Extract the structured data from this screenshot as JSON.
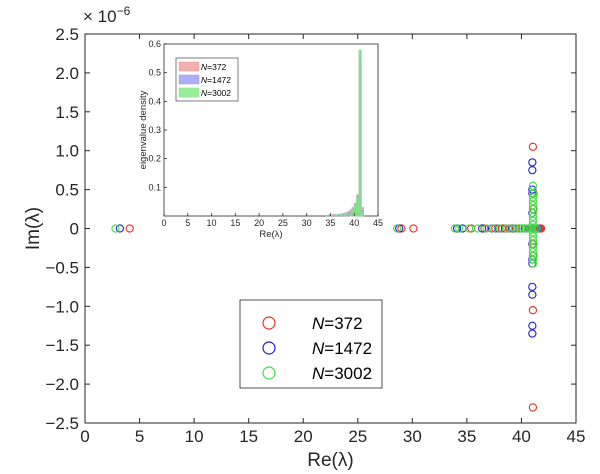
{
  "chart_data": [
    {
      "type": "scatter",
      "title": "",
      "xlabel": "Re(λ)",
      "ylabel": "Im(λ)",
      "y_exponent_label": "× 10",
      "y_exponent_power": "−6",
      "xlim": [
        0,
        45
      ],
      "ylim": [
        -2.5,
        2.5
      ],
      "x_ticks": [
        "0",
        "5",
        "10",
        "15",
        "20",
        "25",
        "30",
        "35",
        "40",
        "45"
      ],
      "y_ticks": [
        "−2.5",
        "−2.0",
        "−1.5",
        "−1.0",
        "−0.5",
        "0",
        "0.5",
        "1.0",
        "1.5",
        "2.0",
        "2.5"
      ],
      "grid": false,
      "legend_position": "bottom-center",
      "marker": "open-circle",
      "series": [
        {
          "name_prefix": "N",
          "name_suffix": "=372",
          "color": "#e8302a",
          "points": [
            [
              4.1,
              0
            ],
            [
              29.0,
              0
            ],
            [
              30.1,
              0
            ],
            [
              35.4,
              0
            ],
            [
              36.6,
              0
            ],
            [
              37.6,
              0
            ],
            [
              38.2,
              0
            ],
            [
              38.9,
              0
            ],
            [
              39.5,
              0
            ],
            [
              40.0,
              0
            ],
            [
              40.4,
              0
            ],
            [
              40.8,
              0
            ],
            [
              41.1,
              0
            ],
            [
              41.3,
              0
            ],
            [
              41.5,
              0
            ],
            [
              41.6,
              0
            ],
            [
              41.7,
              0
            ],
            [
              41.8,
              0
            ],
            [
              41.05,
              1.05
            ],
            [
              41.05,
              -1.05
            ],
            [
              41.05,
              -2.3
            ],
            [
              41.1,
              0.45
            ],
            [
              41.1,
              -0.35
            ],
            [
              41.1,
              0.25
            ],
            [
              41.1,
              -0.2
            ]
          ]
        },
        {
          "name_prefix": "N",
          "name_suffix": "=1472",
          "color": "#1f1fd6",
          "points": [
            [
              3.2,
              0
            ],
            [
              28.8,
              0
            ],
            [
              34.1,
              0
            ],
            [
              34.6,
              0
            ],
            [
              36.4,
              0
            ],
            [
              37.3,
              0
            ],
            [
              37.9,
              0
            ],
            [
              38.5,
              0
            ],
            [
              39.2,
              0
            ],
            [
              39.8,
              0
            ],
            [
              40.3,
              0
            ],
            [
              40.7,
              0
            ],
            [
              41.0,
              0
            ],
            [
              41.25,
              0
            ],
            [
              41.45,
              0
            ],
            [
              41.0,
              0.85
            ],
            [
              41.0,
              0.75
            ],
            [
              41.0,
              0.5
            ],
            [
              41.0,
              0.45
            ],
            [
              41.0,
              -0.4
            ],
            [
              41.0,
              -0.45
            ],
            [
              41.0,
              -0.75
            ],
            [
              41.0,
              -0.85
            ],
            [
              41.0,
              -1.25
            ],
            [
              41.0,
              -1.35
            ],
            [
              41.0,
              0.2
            ],
            [
              41.0,
              -0.2
            ]
          ]
        },
        {
          "name_prefix": "N",
          "name_suffix": "=3002",
          "color": "#40e040",
          "points": [
            [
              2.8,
              0
            ],
            [
              28.6,
              0
            ],
            [
              33.9,
              0
            ],
            [
              34.3,
              0
            ],
            [
              35.2,
              0
            ],
            [
              36.0,
              0
            ],
            [
              36.8,
              0
            ],
            [
              37.4,
              0
            ],
            [
              38.0,
              0
            ],
            [
              38.6,
              0
            ],
            [
              39.0,
              0
            ],
            [
              39.4,
              0
            ],
            [
              39.8,
              0
            ],
            [
              40.1,
              0
            ],
            [
              40.4,
              0
            ],
            [
              40.6,
              0
            ],
            [
              40.8,
              0
            ],
            [
              41.0,
              0
            ],
            [
              41.2,
              0
            ],
            [
              41.4,
              0
            ],
            [
              41.05,
              0.55
            ],
            [
              41.05,
              0.45
            ],
            [
              41.05,
              0.4
            ],
            [
              41.05,
              0.35
            ],
            [
              41.05,
              0.3
            ],
            [
              41.05,
              0.25
            ],
            [
              41.05,
              0.2
            ],
            [
              41.05,
              0.15
            ],
            [
              41.05,
              0.1
            ],
            [
              41.05,
              0.05
            ],
            [
              41.05,
              -0.05
            ],
            [
              41.05,
              -0.1
            ],
            [
              41.05,
              -0.15
            ],
            [
              41.05,
              -0.2
            ],
            [
              41.05,
              -0.25
            ],
            [
              41.05,
              -0.3
            ],
            [
              41.05,
              -0.35
            ],
            [
              41.05,
              -0.4
            ],
            [
              41.05,
              -0.45
            ]
          ]
        }
      ]
    },
    {
      "type": "bar",
      "title": "",
      "xlabel": "Re(λ)",
      "ylabel": "eigenvalue density",
      "xlim": [
        0,
        45
      ],
      "ylim": [
        0,
        0.6
      ],
      "x_ticks": [
        "0",
        "5",
        "10",
        "15",
        "20",
        "25",
        "30",
        "35",
        "40",
        "45"
      ],
      "y_ticks": [
        "0.1",
        "0.2",
        "0.3",
        "0.4",
        "0.5",
        "0.6"
      ],
      "legend_position": "top-left",
      "bin_width": 0.5,
      "series": [
        {
          "name_prefix": "N",
          "name_suffix": "=372",
          "color": "#f09a9a",
          "bins": [
            [
              35.5,
              0.006
            ],
            [
              37.0,
              0.008
            ],
            [
              38.0,
              0.012
            ],
            [
              38.5,
              0.015
            ],
            [
              39.0,
              0.022
            ],
            [
              39.5,
              0.03
            ],
            [
              40.0,
              0.045
            ],
            [
              40.5,
              0.075
            ],
            [
              41.0,
              0.53
            ],
            [
              41.5,
              0.03
            ]
          ]
        },
        {
          "name_prefix": "N",
          "name_suffix": "=1472",
          "color": "#9a9af0",
          "bins": [
            [
              34.5,
              0.004
            ],
            [
              36.5,
              0.006
            ],
            [
              37.5,
              0.009
            ],
            [
              38.5,
              0.012
            ],
            [
              39.0,
              0.018
            ],
            [
              39.5,
              0.026
            ],
            [
              40.0,
              0.04
            ],
            [
              40.5,
              0.07
            ],
            [
              41.0,
              0.575
            ],
            [
              41.5,
              0.02
            ]
          ]
        },
        {
          "name_prefix": "N",
          "name_suffix": "=3002",
          "color": "#7ee87e",
          "bins": [
            [
              34.0,
              0.003
            ],
            [
              35.0,
              0.004
            ],
            [
              36.0,
              0.005
            ],
            [
              37.0,
              0.007
            ],
            [
              38.0,
              0.01
            ],
            [
              39.0,
              0.016
            ],
            [
              39.5,
              0.024
            ],
            [
              40.0,
              0.036
            ],
            [
              40.5,
              0.065
            ],
            [
              41.0,
              0.58
            ],
            [
              41.5,
              0.015
            ]
          ]
        }
      ]
    }
  ]
}
